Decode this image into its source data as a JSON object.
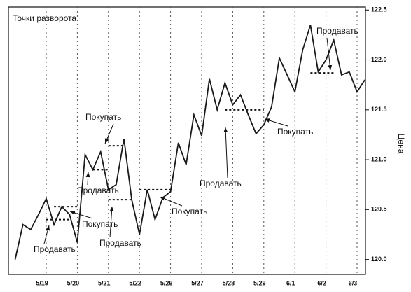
{
  "chart_data": {
    "type": "line",
    "title": "Точки разворота",
    "y_label": "Цена",
    "categories": [
      null,
      null,
      null,
      null,
      "5/19",
      null,
      null,
      null,
      "5/20",
      null,
      null,
      null,
      "5/21",
      null,
      null,
      null,
      "5/22",
      null,
      null,
      null,
      "5/26",
      null,
      null,
      null,
      "5/27",
      null,
      null,
      null,
      "5/28",
      null,
      null,
      null,
      "5/29",
      null,
      null,
      null,
      "6/1",
      null,
      null,
      null,
      "6/2",
      null,
      null,
      null,
      "6/3",
      null
    ],
    "values": [
      120.0,
      120.35,
      120.3,
      120.45,
      120.61,
      120.35,
      120.53,
      120.45,
      120.17,
      121.05,
      120.9,
      121.08,
      120.7,
      120.75,
      121.21,
      120.6,
      120.25,
      120.7,
      120.4,
      120.62,
      120.68,
      121.17,
      120.95,
      121.45,
      121.24,
      121.81,
      121.5,
      121.77,
      121.55,
      121.65,
      121.45,
      121.26,
      121.35,
      121.53,
      122.02,
      121.85,
      121.68,
      122.1,
      122.35,
      121.88,
      122.0,
      122.2,
      121.85,
      121.88,
      121.68,
      121.8
    ],
    "color": "#1a1a1a",
    "ylim": [
      119.85,
      122.53
    ],
    "yticks": [
      {
        "value": 120,
        "label": "120.0"
      },
      120.5,
      {
        "value": 121,
        "label": "121.0"
      },
      121.5,
      {
        "value": 122,
        "label": "122.0"
      },
      122.5
    ],
    "levels": [
      {
        "value": 120.4,
        "from": 4,
        "to": 7
      },
      {
        "value": 120.53,
        "from": 5,
        "to": 8
      },
      {
        "value": 120.9,
        "from": 10,
        "to": 12
      },
      {
        "value": 121.14,
        "from": 12,
        "to": 14
      },
      {
        "value": 120.6,
        "from": 12,
        "to": 15
      },
      {
        "value": 120.7,
        "from": 16,
        "to": 20
      },
      {
        "value": 121.5,
        "from": 27,
        "to": 32
      },
      {
        "value": 121.87,
        "from": 38,
        "to": 41
      }
    ],
    "annotations": [
      "Продавать",
      "Покупать",
      "Продавать",
      "Покупать",
      "Продавать",
      "Покупать",
      "Продавать",
      "Покупать",
      "Продавать"
    ]
  }
}
